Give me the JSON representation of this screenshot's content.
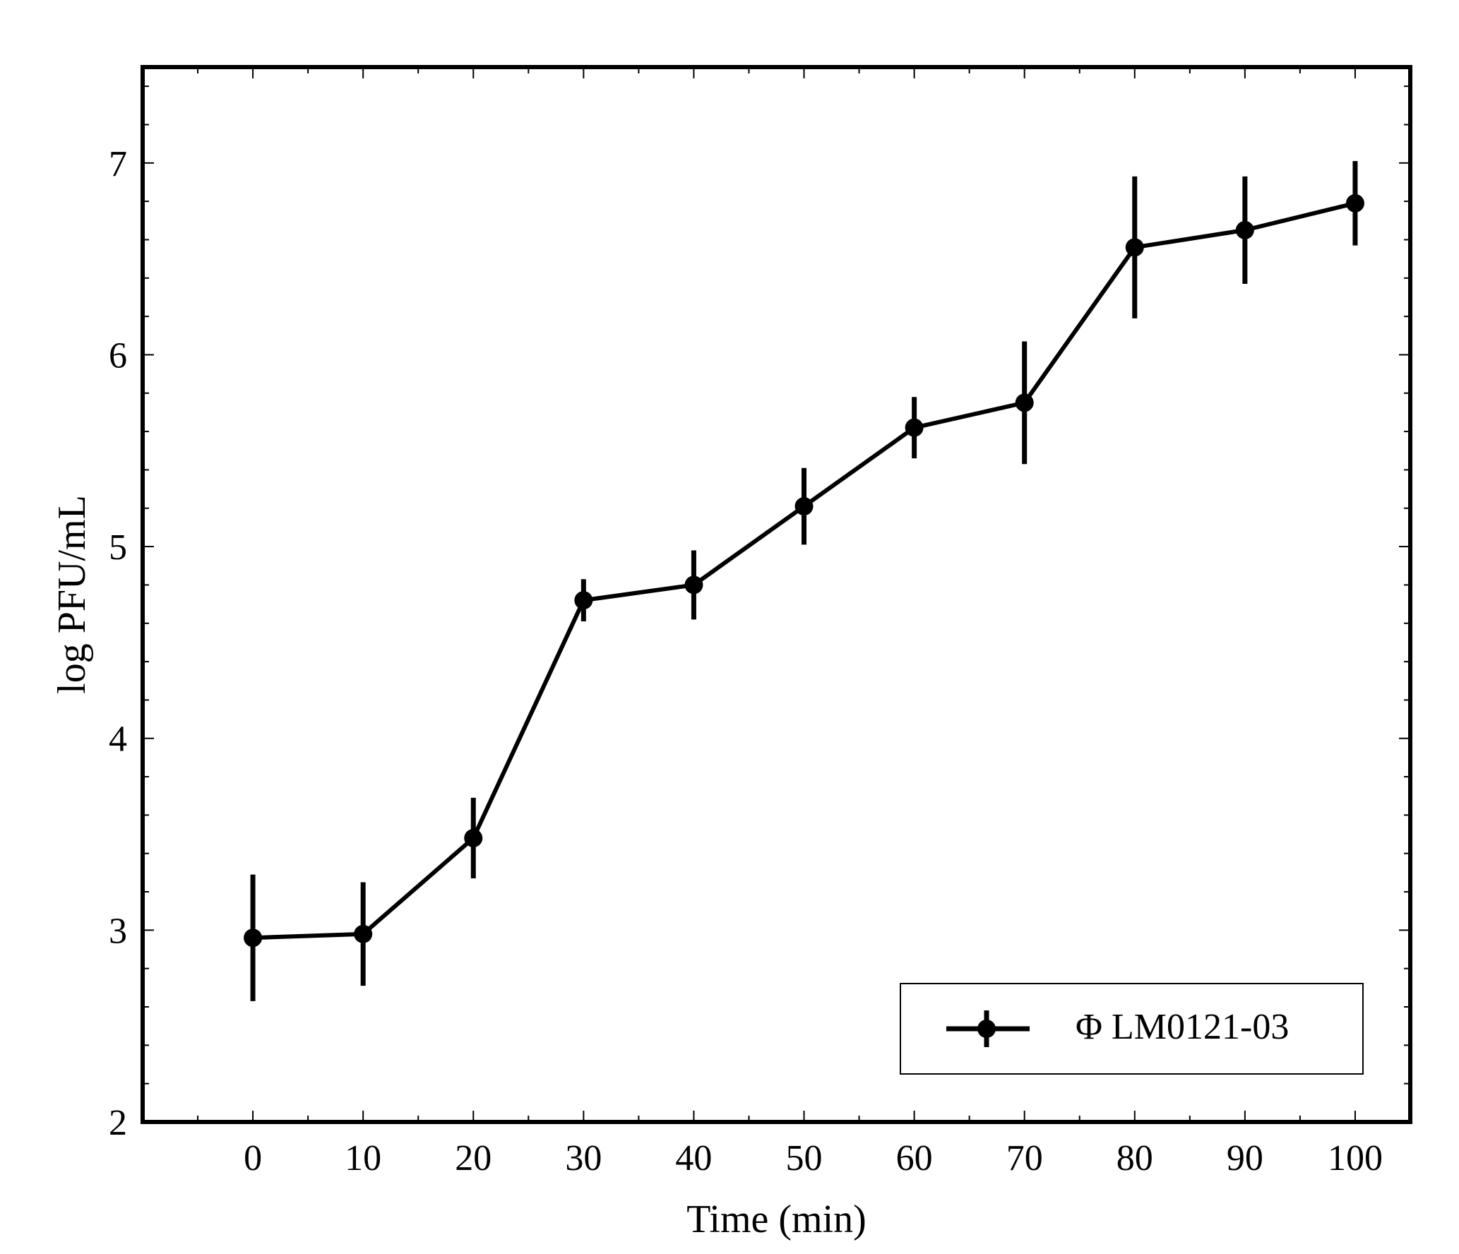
{
  "chart_data": {
    "type": "line",
    "title": "",
    "xlabel": "Time (min)",
    "ylabel": "log PFU/mL",
    "xlim": [
      -10,
      105
    ],
    "ylim": [
      2,
      7.5
    ],
    "x_ticks": [
      0,
      10,
      20,
      30,
      40,
      50,
      60,
      70,
      80,
      90,
      100
    ],
    "y_ticks": [
      2,
      3,
      4,
      5,
      6,
      7
    ],
    "x_minor_step": 5,
    "y_minor_step": 0.2,
    "grid": false,
    "legend_position": "bottom-right",
    "series": [
      {
        "name": "Φ LM0121-03",
        "color": "#000000",
        "marker": "circle",
        "x": [
          0,
          10,
          20,
          30,
          40,
          50,
          60,
          70,
          80,
          90,
          100
        ],
        "y": [
          2.96,
          2.98,
          3.48,
          4.72,
          4.8,
          5.21,
          5.62,
          5.75,
          6.56,
          6.65,
          6.79
        ],
        "error": [
          0.33,
          0.27,
          0.21,
          0.11,
          0.18,
          0.2,
          0.16,
          0.32,
          0.37,
          0.28,
          0.22
        ]
      }
    ]
  }
}
